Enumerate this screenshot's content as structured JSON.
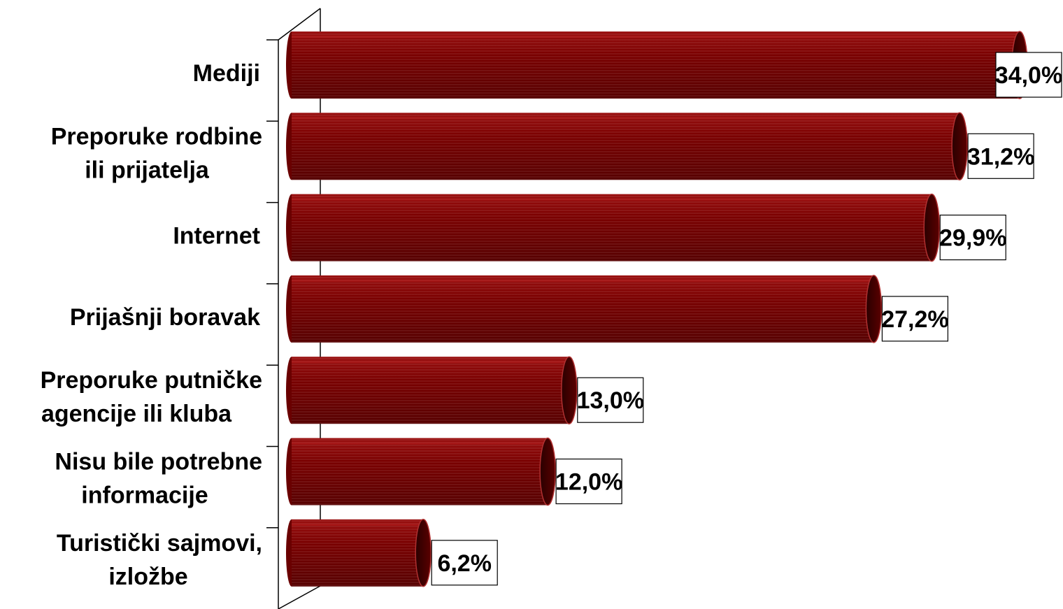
{
  "chart_data": {
    "type": "bar",
    "orientation": "horizontal",
    "style": "3d-cylinder",
    "categories": [
      "Mediji",
      "Preporuke rodbine ili prijatelja",
      "Internet",
      "Prijašnji boravak",
      "Preporuke putničke agencije ili kluba",
      "Nisu bile potrebne informacije",
      "Turistički sajmovi, izložbe"
    ],
    "category_lines": [
      [
        "Mediji"
      ],
      [
        "Preporuke rodbine",
        "ili prijatelja"
      ],
      [
        "Internet"
      ],
      [
        "Prijašnji boravak"
      ],
      [
        "Preporuke putničke",
        "agencije ili kluba"
      ],
      [
        "Nisu bile potrebne",
        "informacije"
      ],
      [
        "Turistički sajmovi,",
        "izložbe"
      ]
    ],
    "values": [
      34.0,
      31.2,
      29.9,
      27.2,
      13.0,
      12.0,
      6.2
    ],
    "data_labels": [
      "34,0%",
      "31,2%",
      "29,9%",
      "27,2%",
      "13,0%",
      "12,0%",
      "6,2%"
    ],
    "unit": "%",
    "xlim": [
      0,
      34.0
    ],
    "grid": false,
    "legend": "none",
    "colors": {
      "bar_fill": "#7a0000",
      "bar_dark": "#4a0000",
      "bar_light": "#a01818",
      "cap_fill": "#3c0000",
      "stripe": "#8e1a1a",
      "label_box_border": "#000000",
      "label_box_fill": "#ffffff",
      "axis": "#000000"
    }
  }
}
